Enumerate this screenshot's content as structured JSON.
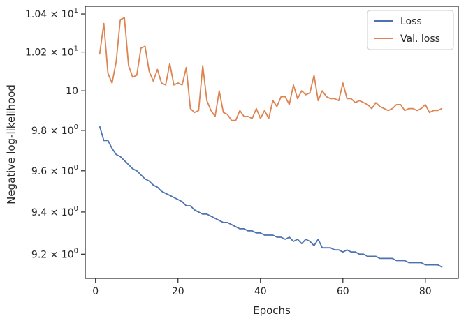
{
  "chart_data": {
    "type": "line",
    "xlabel": "Epochs",
    "ylabel": "Negative log-likelihood",
    "xlim": [
      -2.5,
      88
    ],
    "ylim": [
      9.087,
      10.441
    ],
    "yscale": "log",
    "grid": false,
    "legend_position": "top-right",
    "x_ticks": [
      0,
      20,
      40,
      60,
      80
    ],
    "x_tick_labels": [
      "0",
      "20",
      "40",
      "60",
      "80"
    ],
    "y_ticks": [
      {
        "value": 9.2,
        "mantissa": "9.2 × 10",
        "exponent": "0"
      },
      {
        "value": 9.4,
        "mantissa": "9.4 × 10",
        "exponent": "0"
      },
      {
        "value": 9.6,
        "mantissa": "9.6 × 10",
        "exponent": "0"
      },
      {
        "value": 9.8,
        "mantissa": "9.8 × 10",
        "exponent": "0"
      },
      {
        "value": 10.0,
        "mantissa": "10",
        "exponent": "1"
      },
      {
        "value": 10.2,
        "mantissa": "1.02 × 10",
        "exponent": "1"
      },
      {
        "value": 10.4,
        "mantissa": "1.04 × 10",
        "exponent": "1"
      }
    ],
    "series": [
      {
        "name": "Loss",
        "color": "#4c72b0",
        "x": [
          1,
          2,
          3,
          4,
          5,
          6,
          7,
          8,
          9,
          10,
          11,
          12,
          13,
          14,
          15,
          16,
          17,
          18,
          19,
          20,
          21,
          22,
          23,
          24,
          25,
          26,
          27,
          28,
          29,
          30,
          31,
          32,
          33,
          34,
          35,
          36,
          37,
          38,
          39,
          40,
          41,
          42,
          43,
          44,
          45,
          46,
          47,
          48,
          49,
          50,
          51,
          52,
          53,
          54,
          55,
          56,
          57,
          58,
          59,
          60,
          61,
          62,
          63,
          64,
          65,
          66,
          67,
          68,
          69,
          70,
          71,
          72,
          73,
          74,
          75,
          76,
          77,
          78,
          79,
          80,
          81,
          82,
          83,
          84
        ],
        "values": [
          9.82,
          9.75,
          9.75,
          9.71,
          9.68,
          9.67,
          9.65,
          9.63,
          9.61,
          9.6,
          9.58,
          9.56,
          9.55,
          9.53,
          9.52,
          9.5,
          9.49,
          9.48,
          9.47,
          9.46,
          9.45,
          9.43,
          9.43,
          9.41,
          9.4,
          9.39,
          9.39,
          9.38,
          9.37,
          9.36,
          9.35,
          9.35,
          9.34,
          9.33,
          9.32,
          9.32,
          9.31,
          9.31,
          9.3,
          9.3,
          9.29,
          9.29,
          9.29,
          9.28,
          9.28,
          9.27,
          9.28,
          9.26,
          9.27,
          9.25,
          9.27,
          9.26,
          9.24,
          9.27,
          9.23,
          9.23,
          9.23,
          9.22,
          9.22,
          9.21,
          9.22,
          9.21,
          9.21,
          9.2,
          9.2,
          9.19,
          9.19,
          9.19,
          9.18,
          9.18,
          9.18,
          9.18,
          9.17,
          9.17,
          9.17,
          9.16,
          9.16,
          9.16,
          9.16,
          9.15,
          9.15,
          9.15,
          9.15,
          9.14
        ]
      },
      {
        "name": "Val. loss",
        "color": "#dd8452",
        "x": [
          1,
          2,
          3,
          4,
          5,
          6,
          7,
          8,
          9,
          10,
          11,
          12,
          13,
          14,
          15,
          16,
          17,
          18,
          19,
          20,
          21,
          22,
          23,
          24,
          25,
          26,
          27,
          28,
          29,
          30,
          31,
          32,
          33,
          34,
          35,
          36,
          37,
          38,
          39,
          40,
          41,
          42,
          43,
          44,
          45,
          46,
          47,
          48,
          49,
          50,
          51,
          52,
          53,
          54,
          55,
          56,
          57,
          58,
          59,
          60,
          61,
          62,
          63,
          64,
          65,
          66,
          67,
          68,
          69,
          70,
          71,
          72,
          73,
          74,
          75,
          76,
          77,
          78,
          79,
          80,
          81,
          82,
          83,
          84
        ],
        "values": [
          10.19,
          10.35,
          10.09,
          10.04,
          10.15,
          10.37,
          10.38,
          10.13,
          10.07,
          10.08,
          10.22,
          10.23,
          10.1,
          10.05,
          10.11,
          10.04,
          10.03,
          10.14,
          10.03,
          10.04,
          10.03,
          10.12,
          9.91,
          9.89,
          9.9,
          10.13,
          9.95,
          9.9,
          9.87,
          10.0,
          9.89,
          9.88,
          9.85,
          9.85,
          9.9,
          9.87,
          9.87,
          9.86,
          9.91,
          9.86,
          9.9,
          9.86,
          9.95,
          9.92,
          9.97,
          9.97,
          9.93,
          10.03,
          9.96,
          10.0,
          9.98,
          9.99,
          10.08,
          9.95,
          10.0,
          9.97,
          9.96,
          9.96,
          9.95,
          10.04,
          9.96,
          9.96,
          9.94,
          9.95,
          9.94,
          9.93,
          9.91,
          9.94,
          9.92,
          9.91,
          9.9,
          9.91,
          9.93,
          9.93,
          9.9,
          9.91,
          9.91,
          9.9,
          9.91,
          9.93,
          9.89,
          9.9,
          9.9,
          9.91
        ]
      }
    ]
  }
}
